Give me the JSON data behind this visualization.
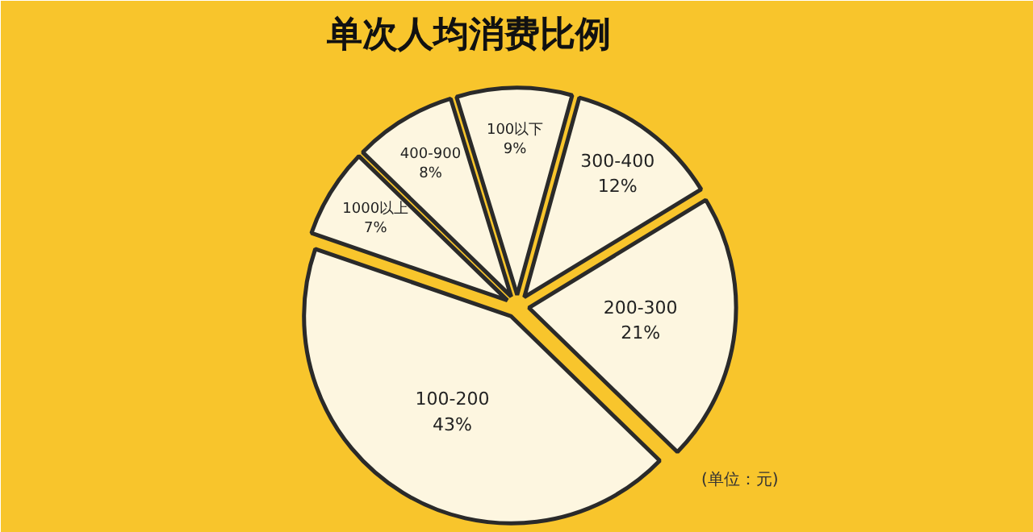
{
  "chart_data": {
    "type": "pie",
    "title": "单次人均消费比例",
    "categories": [
      "100以下",
      "300-400",
      "200-300",
      "100-200",
      "1000以上",
      "400-900"
    ],
    "values": [
      9,
      12,
      21,
      43,
      7,
      8
    ],
    "colors": [
      "#fdf6e0",
      "#fdf6e0",
      "#fdf6e0",
      "#fdf6e0",
      "#fdf6e0",
      "#fdf6e0"
    ],
    "value_labels": [
      "9%",
      "12%",
      "21%",
      "43%",
      "7%",
      "8%"
    ],
    "annotations": [
      "(单位：元)"
    ]
  }
}
